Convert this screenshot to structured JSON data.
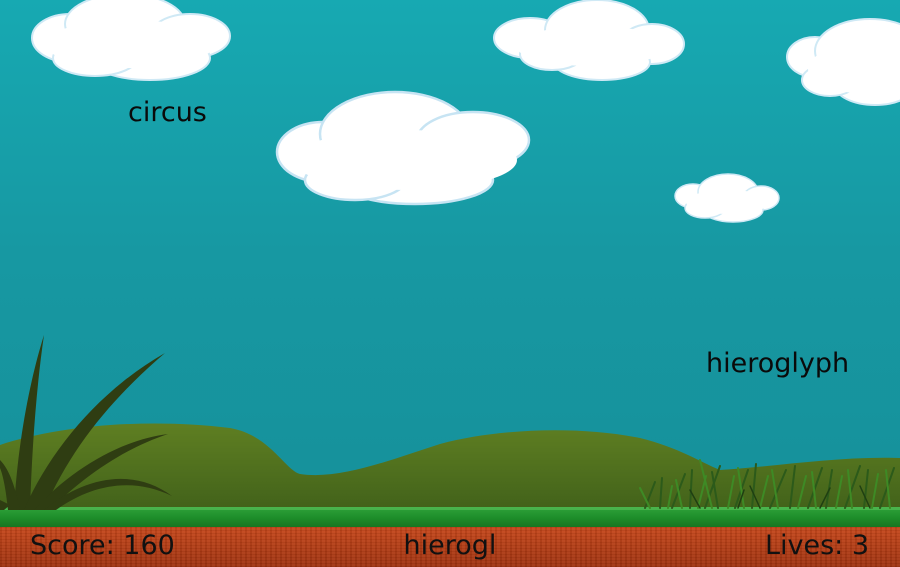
{
  "game": {
    "falling_words": [
      "circus",
      "hieroglyph"
    ],
    "hud": {
      "score_label": "Score: 160",
      "typed_text": "hierogl",
      "lives_label": "Lives: 3"
    }
  },
  "colors": {
    "sky": "#1798a2",
    "hills": "#4e6f1c",
    "grass_strip": "#1d8d2a",
    "soil": "#b33c14",
    "cloud": "#ffffff"
  }
}
